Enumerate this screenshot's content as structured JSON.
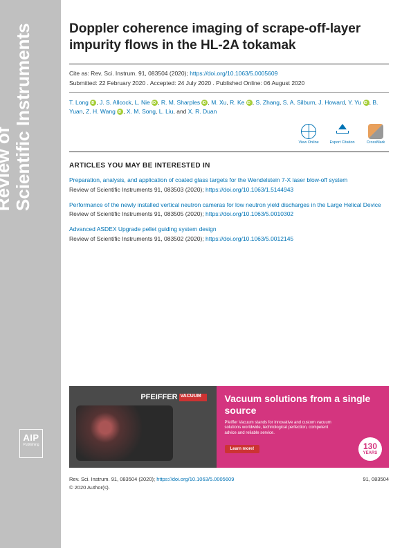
{
  "journal": {
    "line1": "Review of",
    "line2": "Scientific Instruments"
  },
  "article": {
    "title": "Doppler coherence imaging of scrape-off-layer impurity flows in the HL-2A tokamak",
    "cite_prefix": "Cite as: Rev. Sci. Instrum. 91, 083504 (2020); ",
    "doi_url": "https://doi.org/10.1063/5.0005609",
    "dates": "Submitted: 22 February 2020 . Accepted: 24 July 2020 . Published Online: 06 August 2020",
    "authors": [
      {
        "name": "T. Long",
        "orcid": true
      },
      {
        "name": "J. S. Allcock",
        "orcid": false
      },
      {
        "name": "L. Nie",
        "orcid": true
      },
      {
        "name": "R. M. Sharples",
        "orcid": true
      },
      {
        "name": "M. Xu",
        "orcid": false
      },
      {
        "name": "R. Ke",
        "orcid": true
      },
      {
        "name": "S. Zhang",
        "orcid": false
      },
      {
        "name": "S. A. Silburn",
        "orcid": false
      },
      {
        "name": "J. Howard",
        "orcid": false
      },
      {
        "name": "Y. Yu",
        "orcid": true
      },
      {
        "name": "B. Yuan",
        "orcid": false
      },
      {
        "name": "Z. H. Wang",
        "orcid": true
      },
      {
        "name": "X. M. Song",
        "orcid": false
      },
      {
        "name": "L. Liu",
        "orcid": false
      },
      {
        "name": "X. R. Duan",
        "orcid": false
      }
    ]
  },
  "action_labels": {
    "view": "View Online",
    "export": "Export Citation",
    "crossmark": "CrossMark"
  },
  "related_heading": "ARTICLES YOU MAY BE INTERESTED IN",
  "related": [
    {
      "title": "Preparation, analysis, and application of coated glass targets for the Wendelstein 7-X laser blow-off system",
      "cite": "Review of Scientific Instruments 91, 083503 (2020); ",
      "doi": "https://doi.org/10.1063/1.5144943"
    },
    {
      "title": "Performance of the newly installed vertical neutron cameras for low neutron yield discharges in the Large Helical Device",
      "cite": "Review of Scientific Instruments 91, 083505 (2020); ",
      "doi": "https://doi.org/10.1063/5.0010302"
    },
    {
      "title": "Advanced ASDEX Upgrade pellet guiding system design",
      "cite": "Review of Scientific Instruments 91, 083502 (2020); ",
      "doi": "https://doi.org/10.1063/5.0012145"
    }
  ],
  "ad": {
    "brand": "PFEIFFER",
    "headline": "Vacuum solutions from a single source",
    "body": "Pfeiffer Vacuum stands for innovative and custom vacuum solutions worldwide, technological perfection, competent advice and reliable service.",
    "button": "Learn more!",
    "badge_number": "130",
    "badge_unit": "YEARS"
  },
  "footer": {
    "left": "Rev. Sci. Instrum. 91, 083504 (2020); ",
    "doi": "https://doi.org/10.1063/5.0005609",
    "right": "91, 083504",
    "copyright": "© 2020 Author(s)."
  },
  "publisher": {
    "abbr": "AIP",
    "name": "Publishing"
  },
  "colors": {
    "sidebar_bg": "#c0c0c0",
    "link": "#0073b5",
    "orcid": "#a6ce39",
    "ad_pink": "#d4357f",
    "ad_red": "#cc3333"
  }
}
